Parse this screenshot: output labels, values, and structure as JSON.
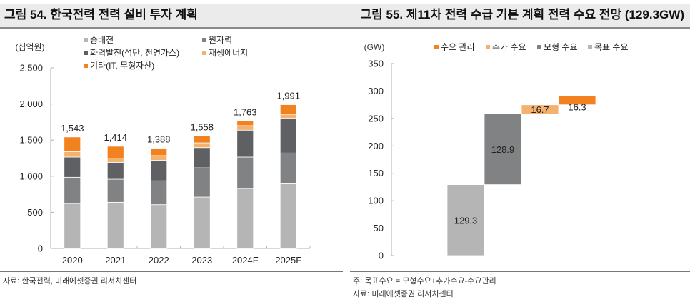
{
  "left_figure": {
    "title": "그림 54. 한국전력 전력 설비 투자 계획",
    "source": "자료: 한국전력, 미래에셋증권 리서치센터"
  },
  "right_figure": {
    "title": "그림 55. 제11차 전력 수급 기본 계획 전력 수요 전망 (129.3GW)",
    "note": "주: 목표수요 = 모형수요+추가수요-수요관리",
    "source": "자료: 미래에셋증권 리서치센터"
  },
  "chart_data": [
    {
      "type": "bar",
      "stacked": true,
      "title": "그림 54. 한국전력 전력 설비 투자 계획",
      "ylabel": "(십억원)",
      "xlabel": "",
      "ylim": [
        0,
        2500
      ],
      "yticks": [
        0,
        500,
        1000,
        1500,
        2000,
        2500
      ],
      "ytick_labels": [
        "0",
        "500",
        "1,000",
        "1,500",
        "2,000",
        "2,500"
      ],
      "grid": false,
      "legend_position": "top",
      "categories": [
        "2020",
        "2021",
        "2022",
        "2023",
        "2024F",
        "2025F"
      ],
      "series": [
        {
          "name": "송배전",
          "color": "#b5b5b6",
          "values": [
            622,
            639,
            606,
            711,
            830,
            896
          ]
        },
        {
          "name": "원자력",
          "color": "#808284",
          "values": [
            363,
            319,
            330,
            405,
            435,
            425
          ]
        },
        {
          "name": "화력발전(석탄, 천연가스)",
          "color": "#5e6063",
          "values": [
            280,
            234,
            283,
            280,
            373,
            480
          ]
        },
        {
          "name": "재생에너지",
          "color": "#f4b26e",
          "values": [
            76,
            59,
            66,
            66,
            62,
            56
          ]
        },
        {
          "name": "기타(IT, 무형자산)",
          "color": "#f28220",
          "values": [
            202,
            163,
            103,
            96,
            63,
            134
          ]
        }
      ],
      "totals": [
        1543,
        1414,
        1388,
        1558,
        1763,
        1991
      ],
      "total_labels": [
        "1,543",
        "1,414",
        "1,388",
        "1,558",
        "1,763",
        "1,991"
      ],
      "legend_order": [
        "송배전",
        "원자력",
        "화력발전(석탄, 천연가스)",
        "재생에너지",
        "기타(IT, 무형자산)"
      ]
    },
    {
      "type": "bar",
      "subtype": "waterfall",
      "title": "그림 55. 제11차 전력 수급 기본 계획 전력 수요 전망 (129.3GW)",
      "ylabel": "(GW)",
      "xlabel": "",
      "ylim": [
        0,
        350
      ],
      "yticks": [
        0,
        50,
        100,
        150,
        200,
        250,
        300,
        350
      ],
      "ytick_labels": [
        "0",
        "50",
        "100",
        "150",
        "200",
        "250",
        "300",
        "350"
      ],
      "grid": false,
      "legend_position": "top",
      "legend": [
        {
          "name": "수요 관리",
          "color": "#f28220"
        },
        {
          "name": "추가 수요",
          "color": "#f4b26e"
        },
        {
          "name": "모형 수요",
          "color": "#808284"
        },
        {
          "name": "목표 수요",
          "color": "#b5b5b6"
        }
      ],
      "bars": [
        {
          "name": "목표 수요",
          "base": 0,
          "value": 129.3,
          "label": "129.3",
          "color": "#b5b5b6"
        },
        {
          "name": "모형 수요",
          "base": 129.3,
          "value": 128.9,
          "label": "128.9",
          "color": "#808284"
        },
        {
          "name": "추가 수요",
          "base": 258.2,
          "value": 16.7,
          "label": "16.7",
          "color": "#f4b26e"
        },
        {
          "name": "수요 관리",
          "base": 274.9,
          "value": 16.3,
          "label": "16.3",
          "color": "#f28220"
        }
      ]
    }
  ]
}
